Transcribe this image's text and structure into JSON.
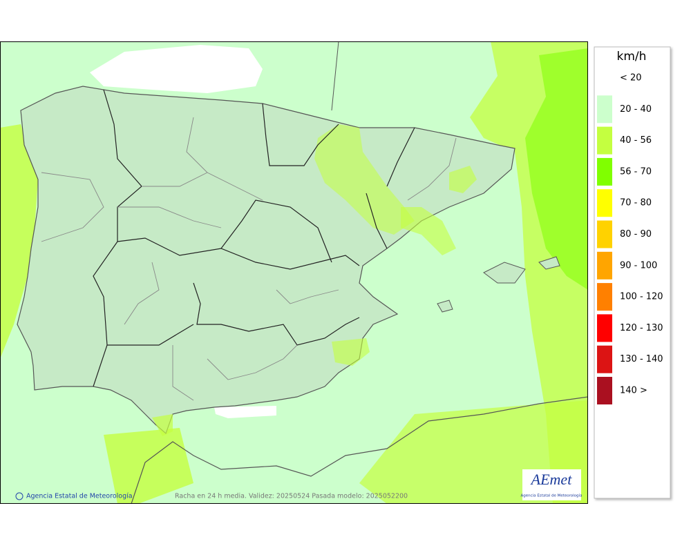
{
  "legend": {
    "title": "km/h",
    "items": [
      {
        "label": "< 20",
        "color": "#ffffff"
      },
      {
        "label": "20 - 40",
        "color": "#ccffcc"
      },
      {
        "label": "40 - 56",
        "color": "#c4ff40"
      },
      {
        "label": "56 - 70",
        "color": "#80ff00"
      },
      {
        "label": "70 - 80",
        "color": "#ffff00"
      },
      {
        "label": "80 - 90",
        "color": "#ffd200"
      },
      {
        "label": "90 - 100",
        "color": "#ffa500"
      },
      {
        "label": "100 - 120",
        "color": "#ff8000"
      },
      {
        "label": "120 - 130",
        "color": "#ff0000"
      },
      {
        "label": "130 - 140",
        "color": "#dc1414"
      },
      {
        "label": "140 >",
        "color": "#aa1020"
      }
    ]
  },
  "footer": {
    "credit": "Agencia Estatal de Meteorología",
    "caption": "Racha en 24 h media. Validez: 20250524 Pasada modelo: 2025052200"
  },
  "logo": {
    "name": "AEmet",
    "subtitle": "Agencia Estatal de Meteorología"
  }
}
